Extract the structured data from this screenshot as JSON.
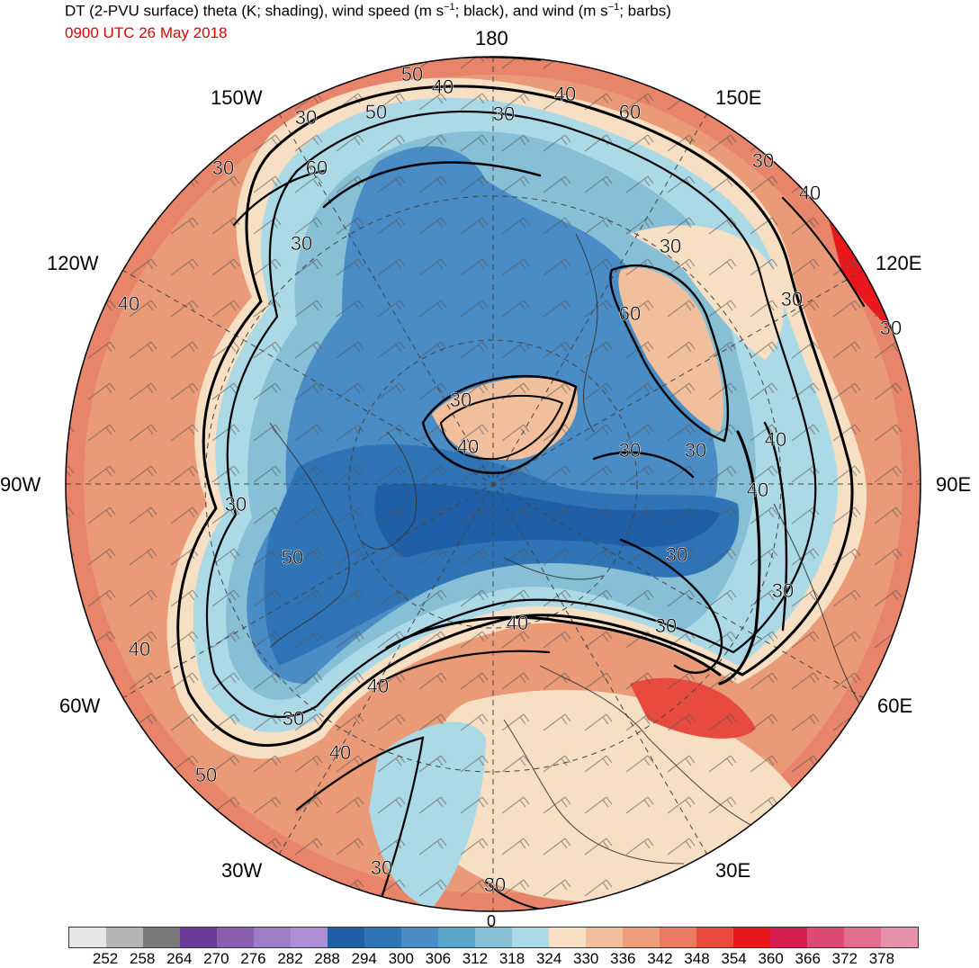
{
  "title": {
    "part1": "DT (2-PVU surface) theta (K; shading), wind speed (m s",
    "sup1": "−1",
    "part2": "; black), and wind (m s",
    "sup2": "−1",
    "part3": "; barbs)"
  },
  "subtitle": "0900 UTC 26 May 2018",
  "longitude_labels": {
    "top": "180",
    "upper_left": "150W",
    "upper_right": "150E",
    "left_upper": "120W",
    "right_upper": "120E",
    "left": "90W",
    "right": "90E",
    "left_lower": "60W",
    "right_lower": "60E",
    "lower_left": "30W",
    "lower_right": "30E",
    "bottom": "0"
  },
  "contour_labels": [
    "50",
    "40",
    "30",
    "60",
    "50",
    "30",
    "60",
    "30",
    "30",
    "40",
    "30",
    "30",
    "40",
    "30",
    "60",
    "30",
    "30",
    "40",
    "30",
    "40",
    "30",
    "30",
    "40",
    "50",
    "30",
    "30",
    "40",
    "40",
    "30",
    "40",
    "30",
    "40",
    "50",
    "30",
    "30",
    "40"
  ],
  "colorbar": {
    "colors": [
      "#e6e6e6",
      "#b4b4b4",
      "#7a7a7a",
      "#6a3c99",
      "#8a5fb0",
      "#9e7cc6",
      "#b08ed6",
      "#1f5fa8",
      "#2f74b6",
      "#4a8cc6",
      "#5aa6c8",
      "#86bfd6",
      "#acd9e6",
      "#f6dfc3",
      "#f2bf9d",
      "#ee9e7c",
      "#ea7a64",
      "#e84a3e",
      "#e8181c",
      "#d61f4e",
      "#dd4a76",
      "#e36e90",
      "#e690aa"
    ],
    "ticks": [
      "252",
      "258",
      "264",
      "270",
      "276",
      "282",
      "288",
      "294",
      "300",
      "306",
      "312",
      "318",
      "324",
      "330",
      "336",
      "342",
      "348",
      "354",
      "360",
      "366",
      "372",
      "378"
    ]
  }
}
